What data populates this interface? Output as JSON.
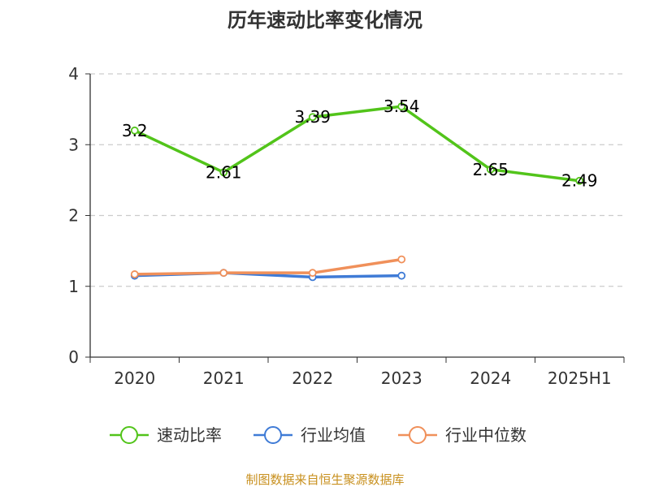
{
  "chart_data": {
    "type": "line",
    "title": "历年速动比率变化情况",
    "categories": [
      "2020",
      "2021",
      "2022",
      "2023",
      "2024",
      "2025H1"
    ],
    "ylim": [
      0,
      4
    ],
    "yticks": [
      "0",
      "1",
      "2",
      "3",
      "4"
    ],
    "grid": true,
    "legend_position": "bottom",
    "series": [
      {
        "name": "速动比率",
        "color": "#52c41a",
        "values": [
          3.2,
          2.61,
          3.39,
          3.54,
          2.65,
          2.49
        ],
        "labels": [
          "3.2",
          "2.61",
          "3.39",
          "3.54",
          "2.65",
          "2.49"
        ]
      },
      {
        "name": "行业均值",
        "color": "#3f7bd6",
        "values": [
          1.15,
          1.19,
          1.13,
          1.15,
          null,
          null
        ]
      },
      {
        "name": "行业中位数",
        "color": "#f0905a",
        "values": [
          1.17,
          1.19,
          1.19,
          1.38,
          null,
          null
        ]
      }
    ],
    "source": "制图数据来自恒生聚源数据库"
  }
}
